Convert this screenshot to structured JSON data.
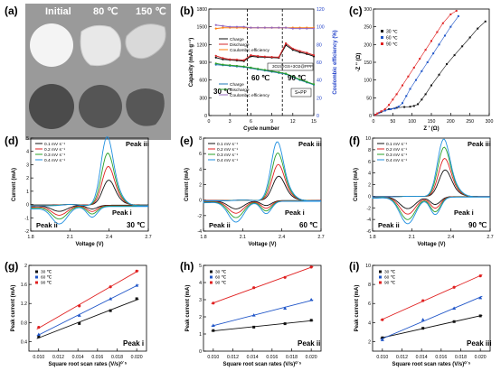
{
  "panel_letters": [
    "(a)",
    "(b)",
    "(c)",
    "(d)",
    "(e)",
    "(f)",
    "(g)",
    "(h)",
    "(i)"
  ],
  "photos": {
    "column_labels": [
      "Initial",
      "80 ℃",
      "150 ℃"
    ]
  },
  "chart_data": [
    {
      "panel": "b",
      "type": "line",
      "xlabel": "Cycle number",
      "ylabel_left": "Capacity (mAh g⁻¹)",
      "ylabel_right": "Coulombic efficiency (%)",
      "xlim": [
        0,
        15
      ],
      "ylim_left": [
        0,
        1800
      ],
      "ylim_right": [
        0,
        120
      ],
      "xticks": [
        0,
        3,
        6,
        9,
        12,
        15
      ],
      "yticks_left": [
        0,
        300,
        600,
        900,
        1200,
        1500,
        1800
      ],
      "yticks_right": [
        0,
        20,
        40,
        60,
        80,
        100,
        120
      ],
      "temperature_labels": [
        "30 ℃",
        "60 ℃",
        "90 ℃"
      ],
      "annotations": [
        "3O2@GS+3O2@PPF",
        "S+PP"
      ],
      "legend_top": [
        "Charge",
        "Discharge",
        "Coulombic efficiency"
      ],
      "legend_bottom": [
        "Charge",
        "Discharge",
        "Coulombic efficiency"
      ],
      "x": [
        1,
        2,
        3,
        4,
        5,
        6,
        7,
        8,
        9,
        10,
        11,
        12,
        13,
        14,
        15
      ],
      "series": [
        {
          "name": "Charge",
          "group": "top",
          "color": "#111111",
          "axis": "left",
          "values": [
            980,
            950,
            940,
            930,
            920,
            1000,
            990,
            985,
            980,
            975,
            1190,
            1110,
            1070,
            1040,
            1000
          ]
        },
        {
          "name": "Discharge",
          "group": "top",
          "color": "#d62728",
          "axis": "left",
          "values": [
            1010,
            970,
            950,
            945,
            935,
            1020,
            1005,
            995,
            990,
            985,
            1220,
            1130,
            1090,
            1060,
            1020
          ]
        },
        {
          "name": "Coulombic efficiency",
          "group": "top",
          "color": "#ff7f0e",
          "axis": "right",
          "values": [
            98,
            99,
            99,
            99,
            99,
            99,
            99,
            99,
            99,
            99,
            99,
            99,
            99,
            99,
            99
          ]
        },
        {
          "name": "Charge",
          "group": "bottom",
          "color": "#1f77b4",
          "axis": "left",
          "values": [
            860,
            850,
            840,
            830,
            820,
            800,
            780,
            760,
            740,
            720,
            700,
            650,
            600,
            560,
            520
          ]
        },
        {
          "name": "Discharge",
          "group": "bottom",
          "color": "#2ca02c",
          "axis": "left",
          "values": [
            880,
            860,
            850,
            840,
            830,
            810,
            790,
            770,
            750,
            730,
            710,
            660,
            610,
            570,
            530
          ]
        },
        {
          "name": "Coulombic efficiency",
          "group": "bottom",
          "color": "#9467bd",
          "axis": "right",
          "values": [
            102,
            101,
            100,
            100,
            100,
            99,
            99,
            99,
            99,
            99,
            99,
            98,
            98,
            98,
            98
          ]
        }
      ],
      "dashed_x": [
        5.5,
        10.5
      ]
    },
    {
      "panel": "c",
      "type": "scatter",
      "xlabel": "Z ' (Ω)",
      "ylabel": "-Z '' (Ω)",
      "xlim": [
        0,
        300
      ],
      "ylim": [
        0,
        300
      ],
      "xticks": [
        0,
        50,
        100,
        150,
        200,
        250,
        300
      ],
      "yticks": [
        0,
        50,
        100,
        150,
        200,
        250,
        300
      ],
      "legend": [
        "30 ℃",
        "60 ℃",
        "90 ℃"
      ],
      "series": [
        {
          "name": "30 ℃",
          "color": "#111111",
          "x": [
            5,
            20,
            40,
            60,
            80,
            95,
            105,
            115,
            125,
            135,
            150,
            170,
            190,
            210,
            230,
            250,
            270,
            290
          ],
          "y": [
            2,
            10,
            18,
            22,
            24,
            25,
            27,
            32,
            45,
            60,
            85,
            115,
            145,
            170,
            195,
            220,
            245,
            265
          ]
        },
        {
          "name": "60 ℃",
          "color": "#1f55c8",
          "x": [
            5,
            15,
            30,
            45,
            55,
            65,
            75,
            85,
            95,
            110,
            125,
            140,
            155,
            170,
            185,
            200,
            220
          ],
          "y": [
            2,
            8,
            14,
            18,
            20,
            25,
            35,
            55,
            75,
            100,
            125,
            150,
            175,
            200,
            225,
            250,
            280
          ]
        },
        {
          "name": "90 ℃",
          "color": "#e02020",
          "x": [
            5,
            10,
            20,
            30,
            40,
            50,
            60,
            75,
            90,
            105,
            120,
            135,
            150,
            165,
            180,
            200,
            215
          ],
          "y": [
            2,
            6,
            12,
            18,
            30,
            45,
            60,
            85,
            110,
            135,
            160,
            185,
            210,
            235,
            260,
            285,
            295
          ]
        }
      ]
    },
    {
      "panel": "d",
      "type": "line",
      "xlabel": "Voltage (V)",
      "ylabel": "Current (mA)",
      "xlim": [
        1.8,
        2.7
      ],
      "ylim": [
        -2,
        5
      ],
      "xticks": [
        1.8,
        2.1,
        2.4,
        2.7
      ],
      "yticks": [
        -2,
        -1,
        0,
        1,
        2,
        3,
        4,
        5
      ],
      "legend": [
        "0.1 mV s⁻¹",
        "0.2 mV s⁻¹",
        "0.3 mV s⁻¹",
        "0.4 mV s⁻¹"
      ],
      "temperature": "30 ℃",
      "peak_labels": [
        "Peak iii",
        "Peak i",
        "Peak ii"
      ],
      "scan_scales": [
        0.35,
        0.55,
        0.75,
        1.0
      ],
      "ox_peak_v": 2.38,
      "ox_peak_i": 4.5,
      "red1_v": 2.27,
      "red1_i": -0.8,
      "red2_v": 2.02,
      "red2_i": -1.4
    },
    {
      "panel": "e",
      "type": "line",
      "xlabel": "Voltage (V)",
      "ylabel": "Current (mA)",
      "xlim": [
        1.8,
        2.7
      ],
      "ylim": [
        -4,
        8
      ],
      "xticks": [
        1.8,
        2.1,
        2.4,
        2.7
      ],
      "yticks": [
        -4,
        -2,
        0,
        2,
        4,
        6,
        8
      ],
      "legend": [
        "0.1 mV s⁻¹",
        "0.2 mV s⁻¹",
        "0.3 mV s⁻¹",
        "0.4 mV s⁻¹"
      ],
      "temperature": "60 ℃",
      "peak_labels": [
        "Peak iii",
        "Peak i",
        "Peak ii"
      ],
      "scan_scales": [
        0.4,
        0.6,
        0.8,
        1.0
      ],
      "ox_peak_v": 2.36,
      "ox_peak_i": 6.6,
      "red1_v": 2.28,
      "red1_i": -1.6,
      "red2_v": 2.05,
      "red2_i": -2.9
    },
    {
      "panel": "f",
      "type": "line",
      "xlabel": "Voltage (V)",
      "ylabel": "Current (mA)",
      "xlim": [
        1.8,
        2.7
      ],
      "ylim": [
        -6,
        10
      ],
      "xticks": [
        1.8,
        2.1,
        2.4,
        2.7
      ],
      "yticks": [
        -6,
        -4,
        -2,
        0,
        2,
        4,
        6,
        8,
        10
      ],
      "legend": [
        "0.1 mV s⁻¹",
        "0.2 mV s⁻¹",
        "0.3 mV s⁻¹",
        "0.4 mV s⁻¹"
      ],
      "temperature": "90 ℃",
      "peak_labels": [
        "Peak iii",
        "Peak i",
        "Peak ii"
      ],
      "scan_scales": [
        0.45,
        0.65,
        0.85,
        1.0
      ],
      "ox_peak_v": 2.34,
      "ox_peak_i": 8.6,
      "red1_v": 2.28,
      "red1_i": -3.0,
      "red2_v": 2.07,
      "red2_i": -5.0
    },
    {
      "panel": "g",
      "type": "scatter",
      "xlabel": "Square root scan rates (V/s)⁰˙⁵",
      "ylabel": "Peak current (mA)",
      "xlim": [
        0.009,
        0.021
      ],
      "ylim": [
        0.2,
        2.0
      ],
      "xticks": [
        0.01,
        0.012,
        0.014,
        0.016,
        0.018,
        0.02
      ],
      "yticks": [
        0.4,
        0.8,
        1.2,
        1.6,
        2.0
      ],
      "legend": [
        "30 ℃",
        "60 ℃",
        "90 ℃"
      ],
      "peak": "Peak i",
      "x": [
        0.01,
        0.01414,
        0.01732,
        0.02
      ],
      "series": [
        {
          "name": "30 ℃",
          "color": "#111111",
          "values": [
            0.5,
            0.78,
            1.05,
            1.3
          ]
        },
        {
          "name": "60 ℃",
          "color": "#1f55c8",
          "values": [
            0.55,
            0.95,
            1.3,
            1.58
          ]
        },
        {
          "name": "90 ℃",
          "color": "#e02020",
          "values": [
            0.7,
            1.15,
            1.55,
            1.88
          ]
        }
      ]
    },
    {
      "panel": "h",
      "type": "scatter",
      "xlabel": "Square root scan rates (V/s)⁰˙⁵",
      "ylabel": "Peak current (mA)",
      "xlim": [
        0.009,
        0.021
      ],
      "ylim": [
        0,
        5
      ],
      "xticks": [
        0.01,
        0.012,
        0.014,
        0.016,
        0.018,
        0.02
      ],
      "yticks": [
        0,
        1,
        2,
        3,
        4,
        5
      ],
      "legend": [
        "30 ℃",
        "60 ℃",
        "90 ℃"
      ],
      "peak": "Peak ii",
      "x": [
        0.01,
        0.01414,
        0.01732,
        0.02
      ],
      "series": [
        {
          "name": "30 ℃",
          "color": "#111111",
          "values": [
            1.2,
            1.4,
            1.6,
            1.8
          ]
        },
        {
          "name": "60 ℃",
          "color": "#1f55c8",
          "values": [
            1.5,
            2.1,
            2.5,
            3.0
          ]
        },
        {
          "name": "90 ℃",
          "color": "#e02020",
          "values": [
            2.8,
            3.7,
            4.3,
            4.9
          ]
        }
      ]
    },
    {
      "panel": "i",
      "type": "scatter",
      "xlabel": "Square root scan rates (V/s)⁰˙⁵",
      "ylabel": "Peak current (mA)",
      "xlim": [
        0.009,
        0.021
      ],
      "ylim": [
        1,
        10
      ],
      "xticks": [
        0.01,
        0.012,
        0.014,
        0.016,
        0.018,
        0.02
      ],
      "yticks": [
        2,
        4,
        6,
        8,
        10
      ],
      "legend": [
        "30 ℃",
        "60 ℃",
        "90 ℃"
      ],
      "peak": "Peak iii",
      "x": [
        0.01,
        0.01414,
        0.01732,
        0.02
      ],
      "series": [
        {
          "name": "30 ℃",
          "color": "#111111",
          "values": [
            2.4,
            3.4,
            4.1,
            4.7
          ]
        },
        {
          "name": "60 ℃",
          "color": "#1f55c8",
          "values": [
            2.2,
            4.3,
            5.5,
            6.6
          ]
        },
        {
          "name": "90 ℃",
          "color": "#e02020",
          "values": [
            4.3,
            6.3,
            7.7,
            8.9
          ]
        }
      ]
    }
  ]
}
